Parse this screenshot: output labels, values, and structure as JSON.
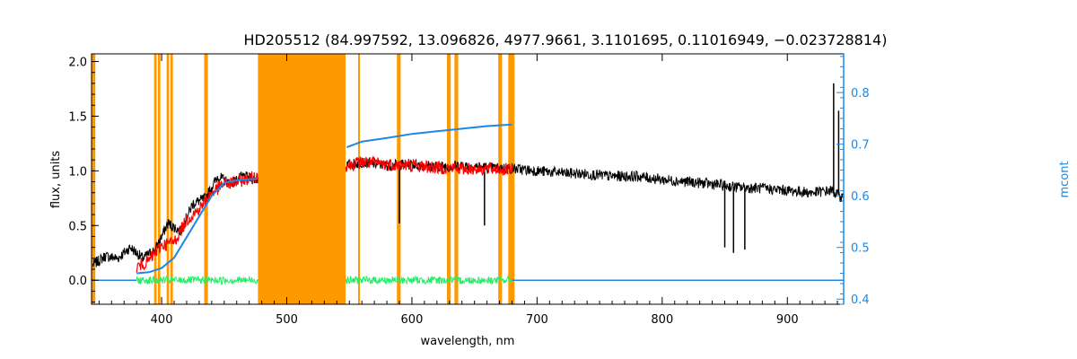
{
  "chart_data": {
    "type": "line",
    "title": "HD205512    (84.997592, 13.096826, 4977.9661, 3.1101695, 0.11016949, −0.023728814)",
    "xlabel": "wavelength, nm",
    "ylabel": "flux, units",
    "y2label": "mcont",
    "xlim": [
      344,
      945
    ],
    "ylim": [
      -0.22,
      2.07
    ],
    "y2lim": [
      0.39,
      0.875
    ],
    "x_ticks": [
      400,
      500,
      600,
      700,
      800,
      900
    ],
    "y_ticks": [
      0.0,
      0.5,
      1.0,
      1.5,
      2.0
    ],
    "y_tick_labels": [
      "0.0",
      "0.5",
      "1.0",
      "1.5",
      "2.0"
    ],
    "y2_ticks": [
      0.4,
      0.5,
      0.6,
      0.7,
      0.8
    ],
    "y2_tick_labels": [
      "0.4",
      "0.5",
      "0.6",
      "0.7",
      "0.8"
    ],
    "colors": {
      "observed": "#000000",
      "model": "#ff0000",
      "residual": "#22ee66",
      "continuum": "#1e88e5",
      "masked": "#ff9900",
      "axis_right": "#1e88e5"
    },
    "masked_regions": [
      [
        344,
        347
      ],
      [
        394,
        396
      ],
      [
        397,
        399
      ],
      [
        404,
        406
      ],
      [
        407,
        409
      ],
      [
        434,
        437
      ],
      [
        477,
        547
      ],
      [
        557,
        558
      ],
      [
        588,
        591
      ],
      [
        628,
        631
      ],
      [
        634,
        637
      ],
      [
        669,
        672
      ],
      [
        677,
        682
      ]
    ],
    "series": [
      {
        "key": "observed",
        "x": [
          345,
          355,
          365,
          375,
          385,
          395,
          405,
          415,
          425,
          435,
          445,
          455,
          465,
          476,
          548,
          560,
          580,
          600,
          620,
          640,
          660,
          680,
          700,
          720,
          740,
          760,
          780,
          800,
          820,
          840,
          860,
          880,
          900,
          920,
          935,
          945
        ],
        "y": [
          0.14,
          0.22,
          0.2,
          0.3,
          0.2,
          0.28,
          0.52,
          0.45,
          0.7,
          0.75,
          0.95,
          0.88,
          0.95,
          0.92,
          1.05,
          1.08,
          1.05,
          1.06,
          1.04,
          1.05,
          1.03,
          1.02,
          1.0,
          0.98,
          0.97,
          0.95,
          0.95,
          0.92,
          0.9,
          0.88,
          0.85,
          0.84,
          0.82,
          0.8,
          0.82,
          0.75
        ]
      },
      {
        "key": "model",
        "x": [
          380,
          390,
          400,
          410,
          420,
          430,
          440,
          450,
          460,
          476,
          548,
          560,
          580,
          600,
          620,
          640,
          660,
          680
        ],
        "y": [
          0.12,
          0.18,
          0.32,
          0.35,
          0.55,
          0.65,
          0.8,
          0.88,
          0.9,
          0.95,
          1.05,
          1.08,
          1.06,
          1.05,
          1.03,
          1.02,
          1.02,
          1.01
        ]
      },
      {
        "key": "residual",
        "x": [
          380,
          476,
          548,
          680
        ],
        "y": [
          0.0,
          0.0,
          0.0,
          0.0
        ]
      },
      {
        "key": "continuum",
        "axis": "y2",
        "x": [
          380,
          390,
          400,
          410,
          420,
          430,
          440,
          450,
          460,
          470,
          476,
          548,
          560,
          580,
          600,
          620,
          640,
          660,
          680
        ],
        "y": [
          0.45,
          0.452,
          0.46,
          0.48,
          0.52,
          0.56,
          0.6,
          0.625,
          0.63,
          0.632,
          0.633,
          0.694,
          0.705,
          0.712,
          0.72,
          0.725,
          0.73,
          0.735,
          0.738
        ]
      }
    ],
    "continuum_baseline": {
      "x": [
        680,
        945
      ],
      "y": 0.0
    },
    "spikes": [
      {
        "x": 590,
        "y": 0.52
      },
      {
        "x": 658,
        "y": 0.5
      },
      {
        "x": 850,
        "y": 0.3
      },
      {
        "x": 857,
        "y": 0.25
      },
      {
        "x": 866,
        "y": 0.28
      },
      {
        "x": 937,
        "y": 1.8
      },
      {
        "x": 941,
        "y": 1.55
      }
    ]
  }
}
